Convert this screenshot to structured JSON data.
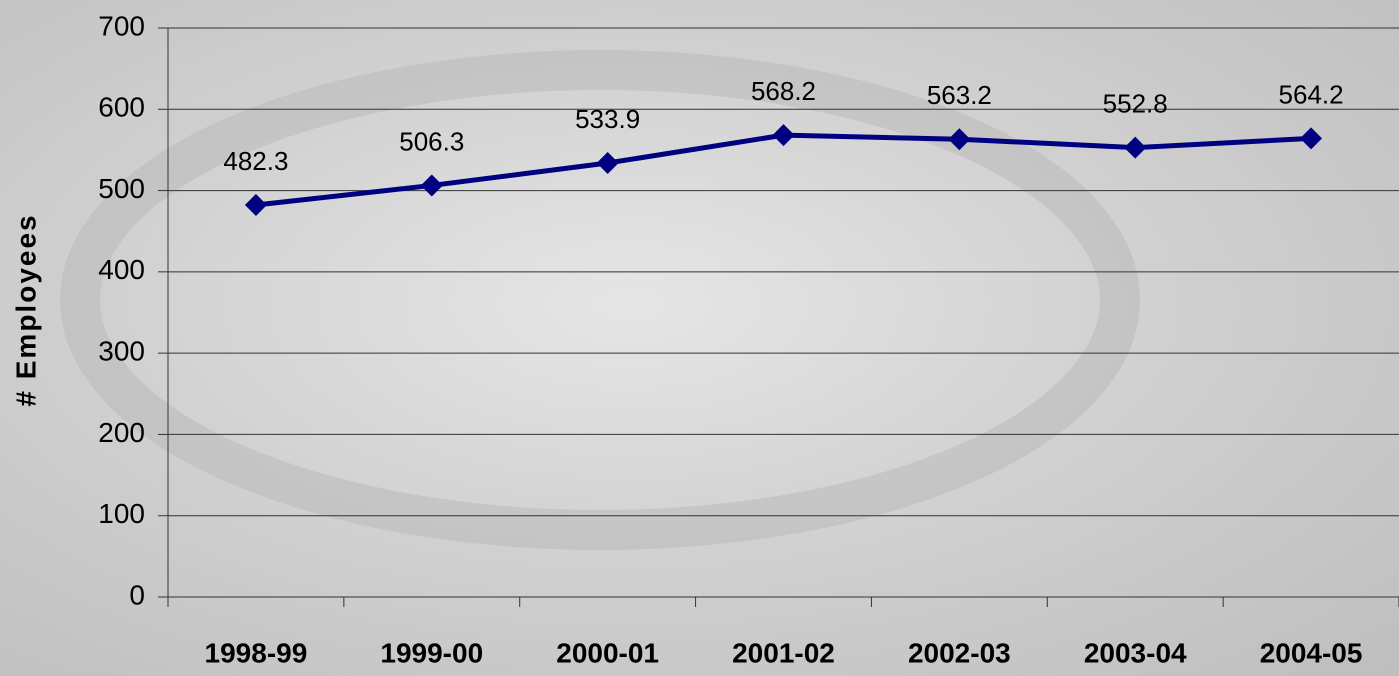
{
  "chart_data": {
    "type": "line",
    "y_label": "# Employees",
    "categories": [
      "1998-99",
      "1999-00",
      "2000-01",
      "2001-02",
      "2002-03",
      "2003-04",
      "2004-05"
    ],
    "values": [
      482.3,
      506.3,
      533.9,
      568.2,
      563.2,
      552.8,
      564.2
    ],
    "color": "#000080",
    "ylim": [
      0,
      700
    ],
    "yticks": [
      0,
      100,
      200,
      300,
      400,
      500,
      600,
      700
    ],
    "grid": true,
    "data_labels": true
  }
}
